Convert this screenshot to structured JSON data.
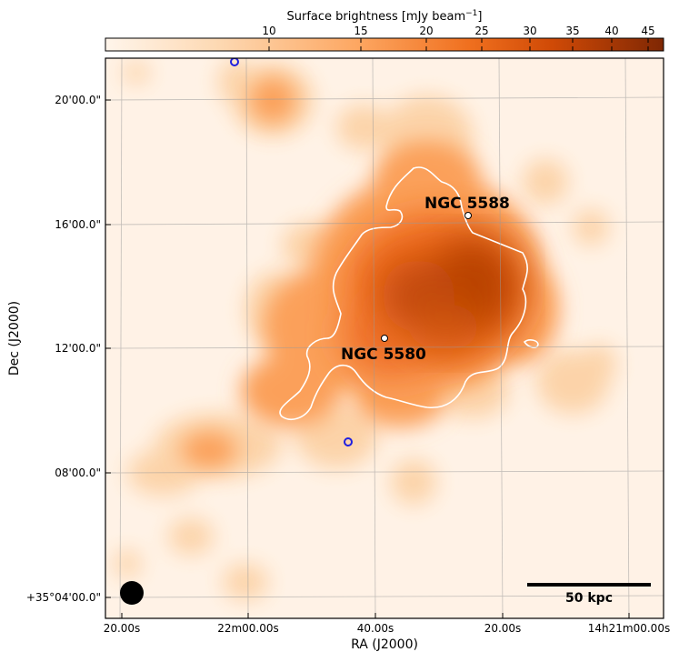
{
  "colorbar": {
    "label": "Surface brightness [mJy beam",
    "label_sup": "−1",
    "label_end": "]",
    "ticks": [
      "10",
      "15",
      "20",
      "25",
      "30",
      "35",
      "40",
      "45"
    ]
  },
  "axes": {
    "xlabel": "RA (J2000)",
    "ylabel": "Dec (J2000)",
    "x_ticks": [
      "20.00s",
      "22m00.00s",
      "40.00s",
      "20.00s",
      "14h21m00.00s"
    ],
    "y_ticks": [
      "20'00.0\"",
      "16'00.0\"",
      "12'00.0\"",
      "08'00.0\"",
      "+35°04'00.0\""
    ]
  },
  "annotations": {
    "galaxy1": "NGC 5588",
    "galaxy2": "NGC 5580",
    "scalebar": "50 kpc"
  },
  "colors": {
    "background": "#fff2e6",
    "colormap_low": "#fff5eb",
    "colormap_high": "#7f2704",
    "contour": "#ffffff",
    "marker_blue": "#1f1fe0"
  }
}
